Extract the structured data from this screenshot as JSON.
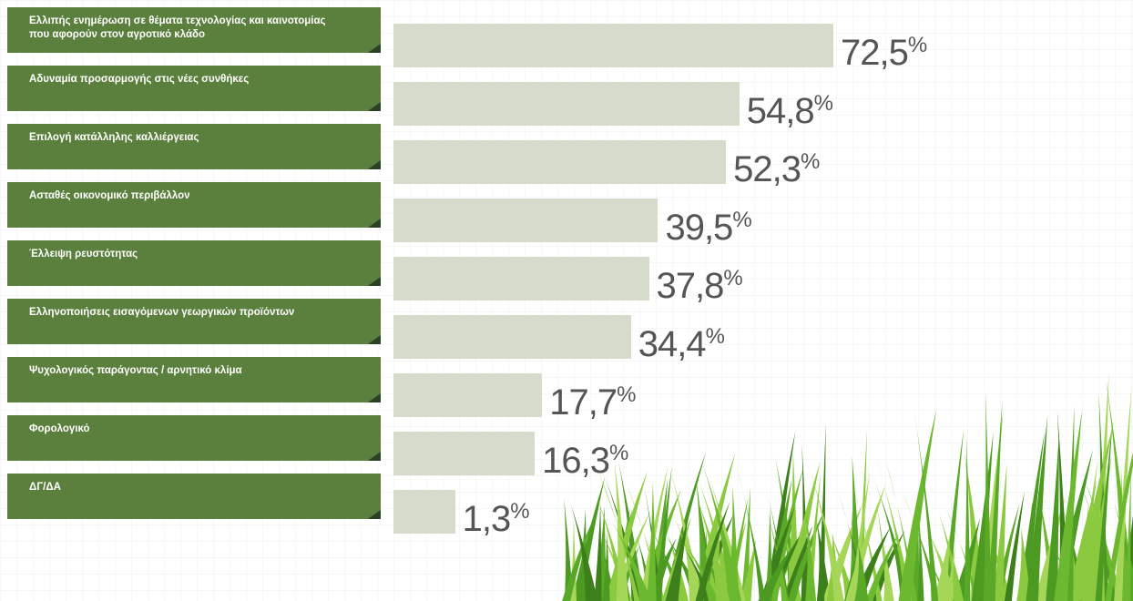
{
  "chart_data": {
    "type": "bar",
    "orientation": "horizontal",
    "categories": [
      "Ελλιπής ενημέρωση σε θέματα τεχνολογίας και καινοτομίας που αφορούν στον αγροτικό κλάδο",
      "Αδυναμία προσαρμογής στις νέες συνθήκες",
      "Επιλογή κατάλληλης καλλιέργειας",
      "Ασταθές οικονομικό περιβάλλον",
      "Έλλειψη ρευστότητας",
      "Ελληνοποιήσεις εισαγόμενων γεωργικών προϊόντων",
      "Ψυχολογικός παράγοντας / αρνητικό κλίμα",
      "Φορολογικό",
      "ΔΓ/ΔΑ"
    ],
    "values": [
      72.5,
      54.8,
      52.3,
      39.5,
      37.8,
      34.4,
      17.7,
      16.3,
      1.3
    ],
    "value_labels": [
      "72,5%",
      "54,8%",
      "52,3%",
      "39,5%",
      "37,8%",
      "34,4%",
      "17,7%",
      "16,3%",
      "1,3%"
    ],
    "color": "#d5dccb"
  }
}
